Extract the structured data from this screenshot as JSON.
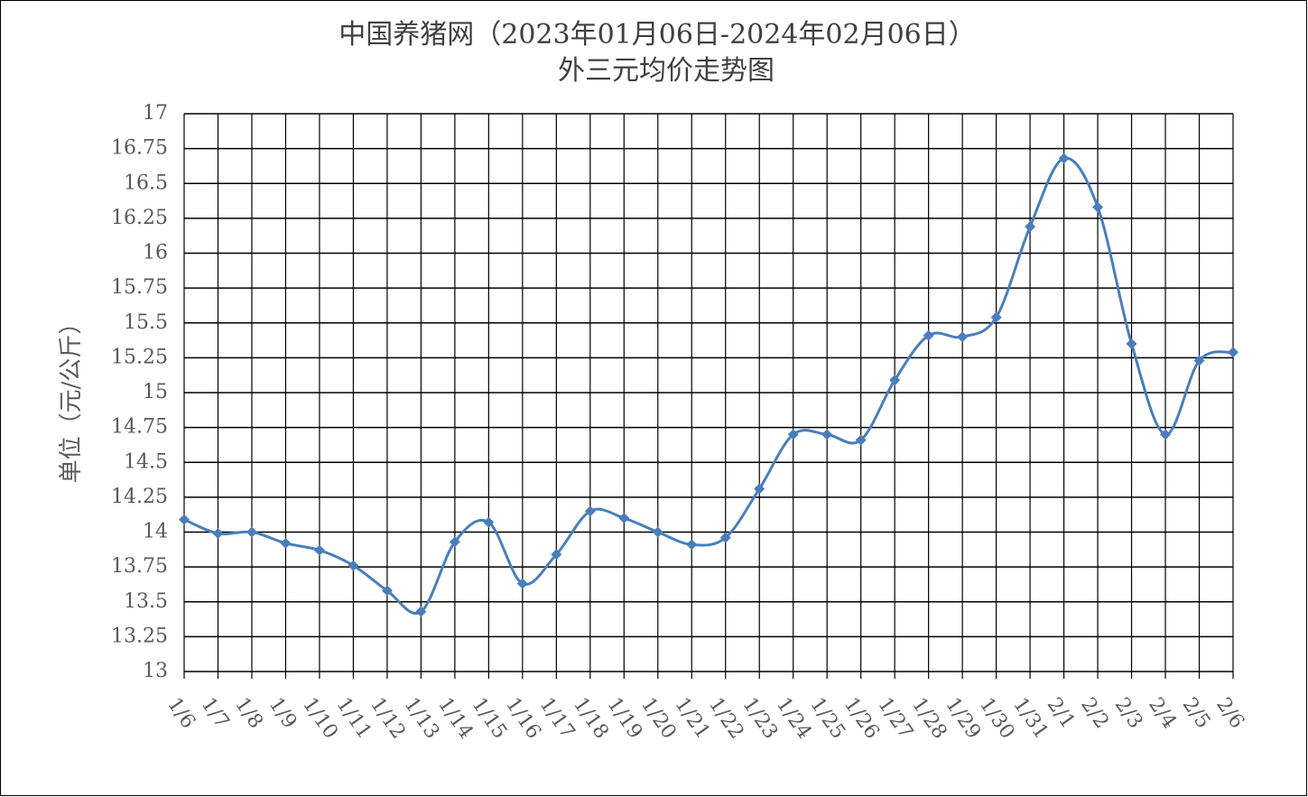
{
  "chart_data": {
    "type": "line",
    "title": "中国养猪网（2023年01月06日-2024年02月06日）",
    "subtitle": "外三元均价走势图",
    "y_label": "单位（元/公斤）",
    "categories": [
      "1/6",
      "1/7",
      "1/8",
      "1/9",
      "1/10",
      "1/11",
      "1/12",
      "1/13",
      "1/14",
      "1/15",
      "1/16",
      "1/17",
      "1/18",
      "1/19",
      "1/20",
      "1/21",
      "1/22",
      "1/23",
      "1/24",
      "1/25",
      "1/26",
      "1/27",
      "1/28",
      "1/29",
      "1/30",
      "1/31",
      "2/1",
      "2/2",
      "2/3",
      "2/4",
      "2/5",
      "2/6"
    ],
    "series": [
      {
        "name": "外三元均价",
        "color": "#4a7ebb",
        "values": [
          14.09,
          13.99,
          14.0,
          13.92,
          13.87,
          13.76,
          13.58,
          13.43,
          13.93,
          14.07,
          13.63,
          13.84,
          14.15,
          14.1,
          14.0,
          13.91,
          13.96,
          14.31,
          14.7,
          14.7,
          14.66,
          15.09,
          15.41,
          15.4,
          15.54,
          16.19,
          16.68,
          16.33,
          15.35,
          14.7,
          15.23,
          15.29
        ]
      }
    ],
    "ylim": [
      13,
      17
    ],
    "yticks": [
      13,
      13.25,
      13.5,
      13.75,
      14,
      14.25,
      14.5,
      14.75,
      15,
      15.25,
      15.5,
      15.75,
      16,
      16.25,
      16.5,
      16.75,
      17
    ],
    "grid": true
  }
}
